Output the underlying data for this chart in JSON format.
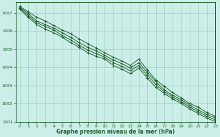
{
  "title": "Graphe pression niveau de la mer (hPa)",
  "bg_color": "#cceee8",
  "grid_color": "#99ccbb",
  "line_color": "#1a5c2a",
  "xlim": [
    -0.5,
    23
  ],
  "ylim": [
    1001.0,
    1007.6
  ],
  "yticks": [
    1001,
    1002,
    1003,
    1004,
    1005,
    1006,
    1007
  ],
  "xticks": [
    0,
    1,
    2,
    3,
    4,
    5,
    6,
    7,
    8,
    9,
    10,
    11,
    12,
    13,
    14,
    15,
    16,
    17,
    18,
    19,
    20,
    21,
    22,
    23
  ],
  "series": [
    [
      1007.35,
      1007.05,
      1006.75,
      1006.55,
      1006.3,
      1006.05,
      1005.85,
      1005.55,
      1005.3,
      1005.05,
      1004.8,
      1004.55,
      1004.35,
      1004.1,
      1004.45,
      1003.85,
      1003.3,
      1002.95,
      1002.6,
      1002.3,
      1002.0,
      1001.8,
      1001.5,
      1001.3
    ],
    [
      1007.3,
      1006.95,
      1006.55,
      1006.35,
      1006.15,
      1005.9,
      1005.65,
      1005.35,
      1005.1,
      1004.9,
      1004.65,
      1004.4,
      1004.2,
      1003.95,
      1004.25,
      1003.7,
      1003.2,
      1002.75,
      1002.45,
      1002.2,
      1001.9,
      1001.65,
      1001.4,
      1001.2
    ],
    [
      1007.25,
      1006.85,
      1006.45,
      1006.25,
      1006.05,
      1005.75,
      1005.5,
      1005.2,
      1004.95,
      1004.75,
      1004.55,
      1004.25,
      1004.05,
      1003.8,
      1004.1,
      1003.55,
      1003.05,
      1002.65,
      1002.35,
      1002.1,
      1001.8,
      1001.55,
      1001.3,
      1001.1
    ],
    [
      1007.2,
      1006.75,
      1006.35,
      1006.1,
      1005.9,
      1005.65,
      1005.35,
      1005.1,
      1004.8,
      1004.6,
      1004.45,
      1004.1,
      1003.9,
      1003.65,
      1003.95,
      1003.4,
      1002.9,
      1002.55,
      1002.25,
      1002.0,
      1001.7,
      1001.45,
      1001.2,
      1001.0
    ]
  ]
}
